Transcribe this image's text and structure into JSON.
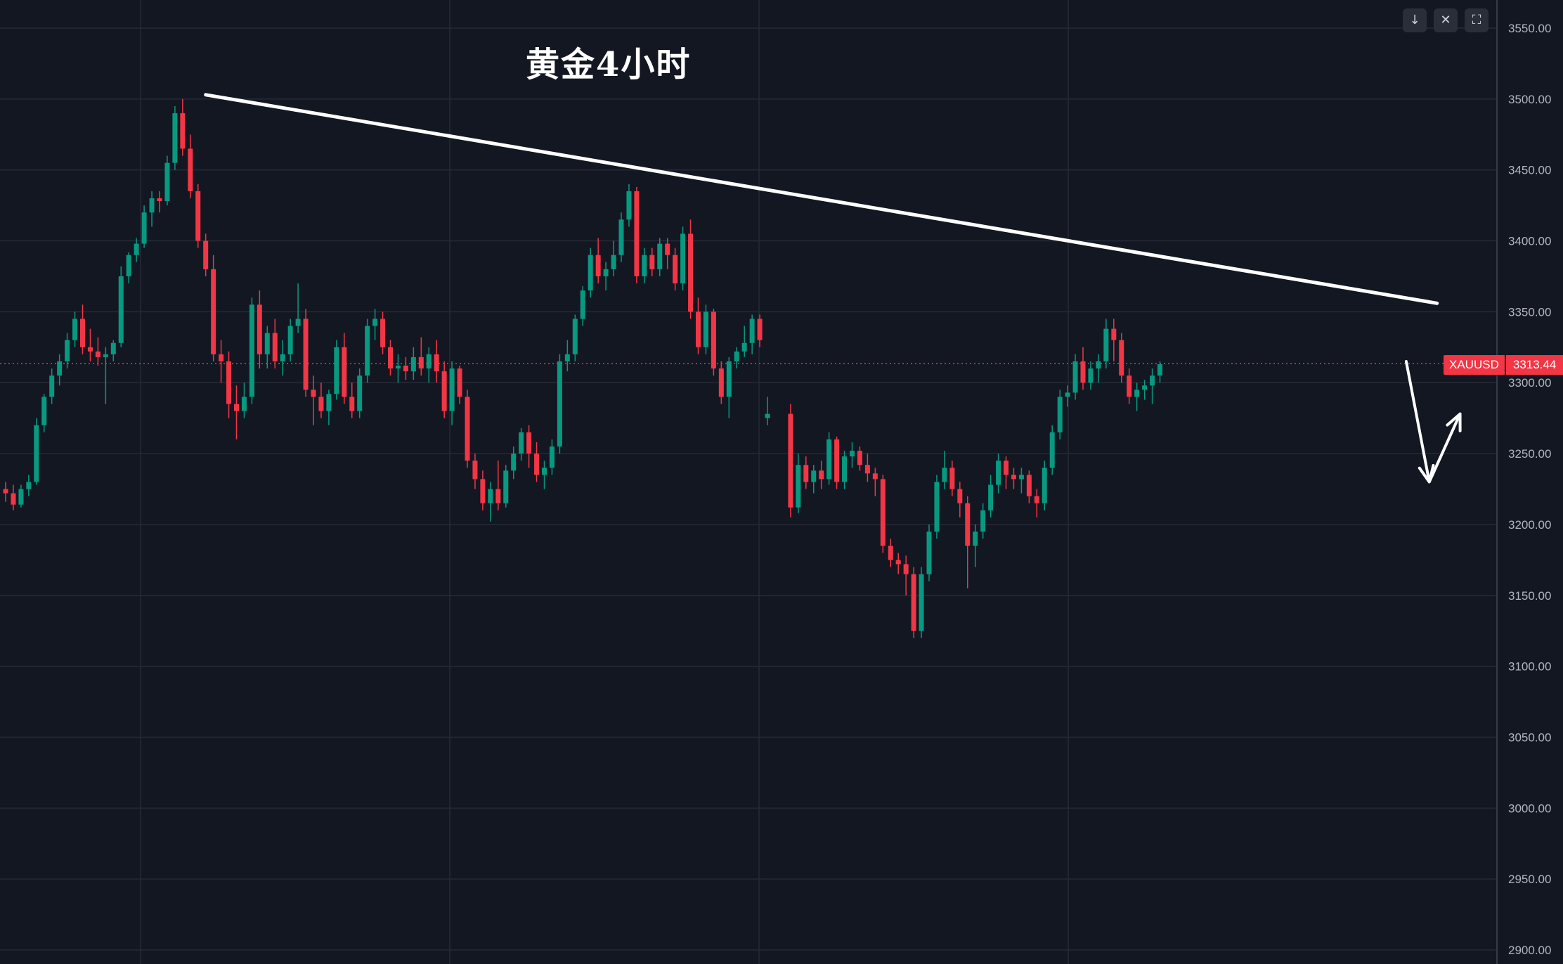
{
  "toolbar": {
    "collapse_icon": "↓",
    "close_icon": "✕",
    "fullscreen_icon": "⛶"
  },
  "price_tag": {
    "symbol": "XAUUSD",
    "value": "3313.44"
  },
  "chart_data": {
    "type": "candlestick",
    "title": "黄金4小时",
    "symbol": "XAUUSD",
    "last_price": 3313.44,
    "ylim": [
      2900,
      3560
    ],
    "yticks": [
      2900,
      2950,
      3000,
      3050,
      3100,
      3150,
      3200,
      3250,
      3300,
      3350,
      3400,
      3450,
      3500,
      3550
    ],
    "ytick_labels": [
      "2900.00",
      "2950.00",
      "3000.00",
      "3050.00",
      "3100.00",
      "3150.00",
      "3200.00",
      "3250.00",
      "3300.00",
      "3350.00",
      "3400.00",
      "3450.00",
      "3500.00",
      "3550.00"
    ],
    "grid": true,
    "colors": {
      "up": "#089981",
      "down": "#f23645",
      "background": "#131722",
      "grid": "#262a36",
      "annotation": "#ffffff"
    },
    "candles": [
      [
        3225,
        3230,
        3216,
        3222
      ],
      [
        3222,
        3228,
        3210,
        3214
      ],
      [
        3214,
        3228,
        3212,
        3225
      ],
      [
        3225,
        3235,
        3220,
        3230
      ],
      [
        3230,
        3275,
        3228,
        3270
      ],
      [
        3270,
        3292,
        3265,
        3290
      ],
      [
        3290,
        3310,
        3285,
        3305
      ],
      [
        3305,
        3320,
        3298,
        3315
      ],
      [
        3315,
        3335,
        3310,
        3330
      ],
      [
        3330,
        3350,
        3325,
        3345
      ],
      [
        3345,
        3355,
        3320,
        3325
      ],
      [
        3325,
        3338,
        3315,
        3322
      ],
      [
        3322,
        3332,
        3312,
        3318
      ],
      [
        3318,
        3325,
        3285,
        3320
      ],
      [
        3320,
        3330,
        3315,
        3328
      ],
      [
        3328,
        3382,
        3325,
        3375
      ],
      [
        3375,
        3392,
        3370,
        3390
      ],
      [
        3390,
        3402,
        3385,
        3398
      ],
      [
        3398,
        3425,
        3395,
        3420
      ],
      [
        3420,
        3435,
        3410,
        3430
      ],
      [
        3430,
        3435,
        3420,
        3428
      ],
      [
        3428,
        3460,
        3425,
        3455
      ],
      [
        3455,
        3495,
        3450,
        3490
      ],
      [
        3490,
        3500,
        3460,
        3465
      ],
      [
        3465,
        3475,
        3430,
        3435
      ],
      [
        3435,
        3440,
        3395,
        3400
      ],
      [
        3400,
        3405,
        3375,
        3380
      ],
      [
        3380,
        3390,
        3315,
        3320
      ],
      [
        3320,
        3330,
        3300,
        3315
      ],
      [
        3315,
        3322,
        3275,
        3285
      ],
      [
        3285,
        3298,
        3260,
        3280
      ],
      [
        3280,
        3300,
        3275,
        3290
      ],
      [
        3290,
        3360,
        3285,
        3355
      ],
      [
        3355,
        3365,
        3310,
        3320
      ],
      [
        3320,
        3340,
        3310,
        3335
      ],
      [
        3335,
        3345,
        3310,
        3315
      ],
      [
        3315,
        3330,
        3305,
        3320
      ],
      [
        3320,
        3345,
        3315,
        3340
      ],
      [
        3340,
        3370,
        3335,
        3345
      ],
      [
        3345,
        3352,
        3290,
        3295
      ],
      [
        3295,
        3305,
        3270,
        3290
      ],
      [
        3290,
        3300,
        3275,
        3280
      ],
      [
        3280,
        3295,
        3270,
        3292
      ],
      [
        3292,
        3330,
        3288,
        3325
      ],
      [
        3325,
        3335,
        3285,
        3290
      ],
      [
        3290,
        3300,
        3275,
        3280
      ],
      [
        3280,
        3310,
        3275,
        3305
      ],
      [
        3305,
        3345,
        3300,
        3340
      ],
      [
        3340,
        3352,
        3330,
        3345
      ],
      [
        3345,
        3350,
        3320,
        3325
      ],
      [
        3325,
        3330,
        3305,
        3310
      ],
      [
        3310,
        3320,
        3300,
        3312
      ],
      [
        3312,
        3318,
        3302,
        3308
      ],
      [
        3308,
        3325,
        3302,
        3318
      ],
      [
        3318,
        3332,
        3305,
        3310
      ],
      [
        3310,
        3325,
        3300,
        3320
      ],
      [
        3320,
        3330,
        3300,
        3308
      ],
      [
        3308,
        3315,
        3275,
        3280
      ],
      [
        3280,
        3315,
        3270,
        3310
      ],
      [
        3310,
        3312,
        3285,
        3290
      ],
      [
        3290,
        3295,
        3240,
        3245
      ],
      [
        3245,
        3250,
        3225,
        3232
      ],
      [
        3232,
        3238,
        3210,
        3215
      ],
      [
        3215,
        3230,
        3202,
        3225
      ],
      [
        3225,
        3245,
        3210,
        3215
      ],
      [
        3215,
        3242,
        3212,
        3238
      ],
      [
        3238,
        3255,
        3232,
        3250
      ],
      [
        3250,
        3268,
        3245,
        3265
      ],
      [
        3265,
        3270,
        3240,
        3250
      ],
      [
        3250,
        3258,
        3230,
        3235
      ],
      [
        3235,
        3245,
        3225,
        3240
      ],
      [
        3240,
        3260,
        3235,
        3255
      ],
      [
        3255,
        3320,
        3250,
        3315
      ],
      [
        3315,
        3330,
        3308,
        3320
      ],
      [
        3320,
        3348,
        3315,
        3345
      ],
      [
        3345,
        3368,
        3340,
        3365
      ],
      [
        3365,
        3395,
        3360,
        3390
      ],
      [
        3390,
        3402,
        3370,
        3375
      ],
      [
        3375,
        3385,
        3365,
        3380
      ],
      [
        3380,
        3400,
        3375,
        3390
      ],
      [
        3390,
        3420,
        3385,
        3415
      ],
      [
        3415,
        3440,
        3410,
        3435
      ],
      [
        3435,
        3438,
        3370,
        3375
      ],
      [
        3375,
        3395,
        3370,
        3390
      ],
      [
        3390,
        3395,
        3375,
        3380
      ],
      [
        3380,
        3402,
        3375,
        3398
      ],
      [
        3398,
        3402,
        3380,
        3390
      ],
      [
        3390,
        3395,
        3365,
        3370
      ],
      [
        3370,
        3410,
        3365,
        3405
      ],
      [
        3405,
        3415,
        3345,
        3350
      ],
      [
        3350,
        3360,
        3320,
        3325
      ],
      [
        3325,
        3355,
        3320,
        3350
      ],
      [
        3350,
        3352,
        3305,
        3310
      ],
      [
        3310,
        3315,
        3285,
        3290
      ],
      [
        3290,
        3318,
        3275,
        3315
      ],
      [
        3315,
        3325,
        3310,
        3322
      ],
      [
        3322,
        3340,
        3318,
        3328
      ],
      [
        3328,
        3348,
        3320,
        3345
      ],
      [
        3345,
        3348,
        3325,
        3330
      ],
      [
        3275,
        3290,
        3270,
        3278
      ],
      [
        3278,
        3285,
        3205,
        3212
      ],
      [
        3212,
        3250,
        3208,
        3242
      ],
      [
        3242,
        3248,
        3225,
        3230
      ],
      [
        3230,
        3242,
        3222,
        3238
      ],
      [
        3238,
        3245,
        3225,
        3232
      ],
      [
        3232,
        3265,
        3228,
        3260
      ],
      [
        3260,
        3262,
        3225,
        3230
      ],
      [
        3230,
        3252,
        3225,
        3248
      ],
      [
        3248,
        3258,
        3240,
        3252
      ],
      [
        3252,
        3255,
        3238,
        3242
      ],
      [
        3242,
        3250,
        3230,
        3236
      ],
      [
        3236,
        3240,
        3220,
        3232
      ],
      [
        3232,
        3235,
        3180,
        3185
      ],
      [
        3185,
        3190,
        3170,
        3175
      ],
      [
        3175,
        3180,
        3165,
        3172
      ],
      [
        3172,
        3178,
        3150,
        3165
      ],
      [
        3165,
        3170,
        3120,
        3125
      ],
      [
        3125,
        3170,
        3120,
        3165
      ],
      [
        3165,
        3200,
        3160,
        3195
      ],
      [
        3195,
        3235,
        3190,
        3230
      ],
      [
        3230,
        3252,
        3225,
        3240
      ],
      [
        3240,
        3245,
        3220,
        3225
      ],
      [
        3225,
        3230,
        3205,
        3215
      ],
      [
        3215,
        3220,
        3155,
        3185
      ],
      [
        3185,
        3200,
        3170,
        3195
      ],
      [
        3195,
        3215,
        3190,
        3210
      ],
      [
        3210,
        3235,
        3205,
        3228
      ],
      [
        3228,
        3250,
        3222,
        3245
      ],
      [
        3245,
        3248,
        3225,
        3235
      ],
      [
        3235,
        3240,
        3225,
        3232
      ],
      [
        3232,
        3240,
        3222,
        3235
      ],
      [
        3235,
        3238,
        3215,
        3220
      ],
      [
        3220,
        3225,
        3205,
        3215
      ],
      [
        3215,
        3245,
        3210,
        3240
      ],
      [
        3240,
        3270,
        3235,
        3265
      ],
      [
        3265,
        3295,
        3260,
        3290
      ],
      [
        3290,
        3298,
        3283,
        3293
      ],
      [
        3293,
        3320,
        3288,
        3315
      ],
      [
        3315,
        3325,
        3295,
        3300
      ],
      [
        3300,
        3315,
        3295,
        3310
      ],
      [
        3310,
        3320,
        3300,
        3315
      ],
      [
        3315,
        3345,
        3310,
        3338
      ],
      [
        3338,
        3345,
        3315,
        3330
      ],
      [
        3330,
        3335,
        3300,
        3305
      ],
      [
        3305,
        3310,
        3285,
        3290
      ],
      [
        3290,
        3300,
        3280,
        3295
      ],
      [
        3295,
        3302,
        3288,
        3298
      ],
      [
        3298,
        3310,
        3285,
        3305
      ],
      [
        3305,
        3315,
        3300,
        3313
      ]
    ],
    "annotations": {
      "trendline": {
        "from_candle": 26,
        "from_price": 3503,
        "to_candle": 184,
        "to_price": 3356
      },
      "forecast_arrow": [
        [
          180,
          3315
        ],
        [
          183,
          3230
        ],
        [
          187,
          3278
        ]
      ]
    }
  }
}
